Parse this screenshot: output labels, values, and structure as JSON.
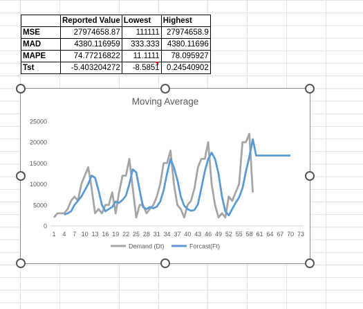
{
  "table": {
    "headers": [
      "",
      "Reported Value",
      "Lowest",
      "Highest"
    ],
    "rows": [
      {
        "label": "MSE",
        "reported": "27974658.87",
        "lowest": "111111",
        "highest": "27974658.9"
      },
      {
        "label": "MAD",
        "reported": "4380.116959",
        "lowest": "333.333",
        "highest": "4380.11696"
      },
      {
        "label": "MAPE",
        "reported": "74.77216822",
        "lowest": "11.1111",
        "highest": "78.095927"
      },
      {
        "label": "Tst",
        "reported": "-5.403204272",
        "lowest": "-8.5851",
        "highest": "0.24540902"
      }
    ],
    "header_display": [
      "Reported Value",
      "Lowest",
      "Highest"
    ]
  },
  "chart_data": {
    "type": "line",
    "title": "Moving Average",
    "xlabel": "",
    "ylabel": "",
    "ylim": [
      0,
      25000
    ],
    "yticks": [
      "0",
      "5000",
      "10000",
      "15000",
      "20000",
      "25000"
    ],
    "xticks": [
      "1",
      "4",
      "7",
      "10",
      "13",
      "16",
      "19",
      "22",
      "25",
      "28",
      "31",
      "34",
      "37",
      "40",
      "43",
      "46",
      "49",
      "52",
      "55",
      "58",
      "61",
      "64",
      "67",
      "70",
      "73"
    ],
    "grid": false,
    "legend_position": "bottom",
    "x": [
      1,
      2,
      3,
      4,
      5,
      6,
      7,
      8,
      9,
      10,
      11,
      12,
      13,
      14,
      15,
      16,
      17,
      18,
      19,
      20,
      21,
      22,
      23,
      24,
      25,
      26,
      27,
      28,
      29,
      30,
      31,
      32,
      33,
      34,
      35,
      36,
      37,
      38,
      39,
      40,
      41,
      42,
      43,
      44,
      45,
      46,
      47,
      48,
      49,
      50,
      51,
      52,
      53,
      54,
      55,
      56,
      57,
      58,
      59,
      60,
      61,
      62,
      63,
      64,
      65,
      66,
      67,
      68,
      69,
      70,
      71,
      72,
      73
    ],
    "series": [
      {
        "name": "Demand (Dt)",
        "color": "#a5a5a5",
        "values": [
          2000,
          3000,
          3000,
          3000,
          4000,
          6000,
          7000,
          6000,
          10000,
          12000,
          14000,
          9000,
          3000,
          4000,
          3000,
          5000,
          5000,
          8000,
          3000,
          8000,
          12000,
          12000,
          16000,
          9000,
          2000,
          5000,
          5000,
          3000,
          4000,
          5000,
          7000,
          10000,
          15000,
          15000,
          18000,
          10000,
          5000,
          4000,
          2000,
          5000,
          6000,
          9000,
          14000,
          16000,
          16000,
          20000,
          10000,
          5000,
          2000,
          3000,
          2000,
          7000,
          6000,
          8000,
          10000,
          20000,
          20000,
          22000,
          8000,
          null,
          null,
          null,
          null,
          null,
          null,
          null,
          null,
          null,
          null,
          null,
          null,
          null,
          null
        ]
      },
      {
        "name": "Forcast(Ft)",
        "color": "#5b9bd5",
        "values": [
          null,
          null,
          null,
          2700,
          3000,
          3500,
          5000,
          6000,
          7000,
          8500,
          10000,
          12000,
          11500,
          8500,
          5000,
          3500,
          4000,
          4500,
          5800,
          5500,
          6200,
          7200,
          10000,
          13500,
          12800,
          8500,
          4500,
          4000,
          4500,
          4200,
          4600,
          5800,
          8500,
          12500,
          16000,
          14000,
          11000,
          7000,
          4800,
          4000,
          3600,
          3800,
          5200,
          9000,
          13000,
          16000,
          17500,
          16000,
          12500,
          7000,
          3500,
          2500,
          4000,
          5500,
          6800,
          9000,
          13000,
          16500,
          20700,
          16800,
          16800,
          16800,
          16800,
          16800,
          16800,
          16800,
          16800,
          16800,
          16800,
          16800,
          null,
          null,
          null
        ]
      }
    ]
  }
}
